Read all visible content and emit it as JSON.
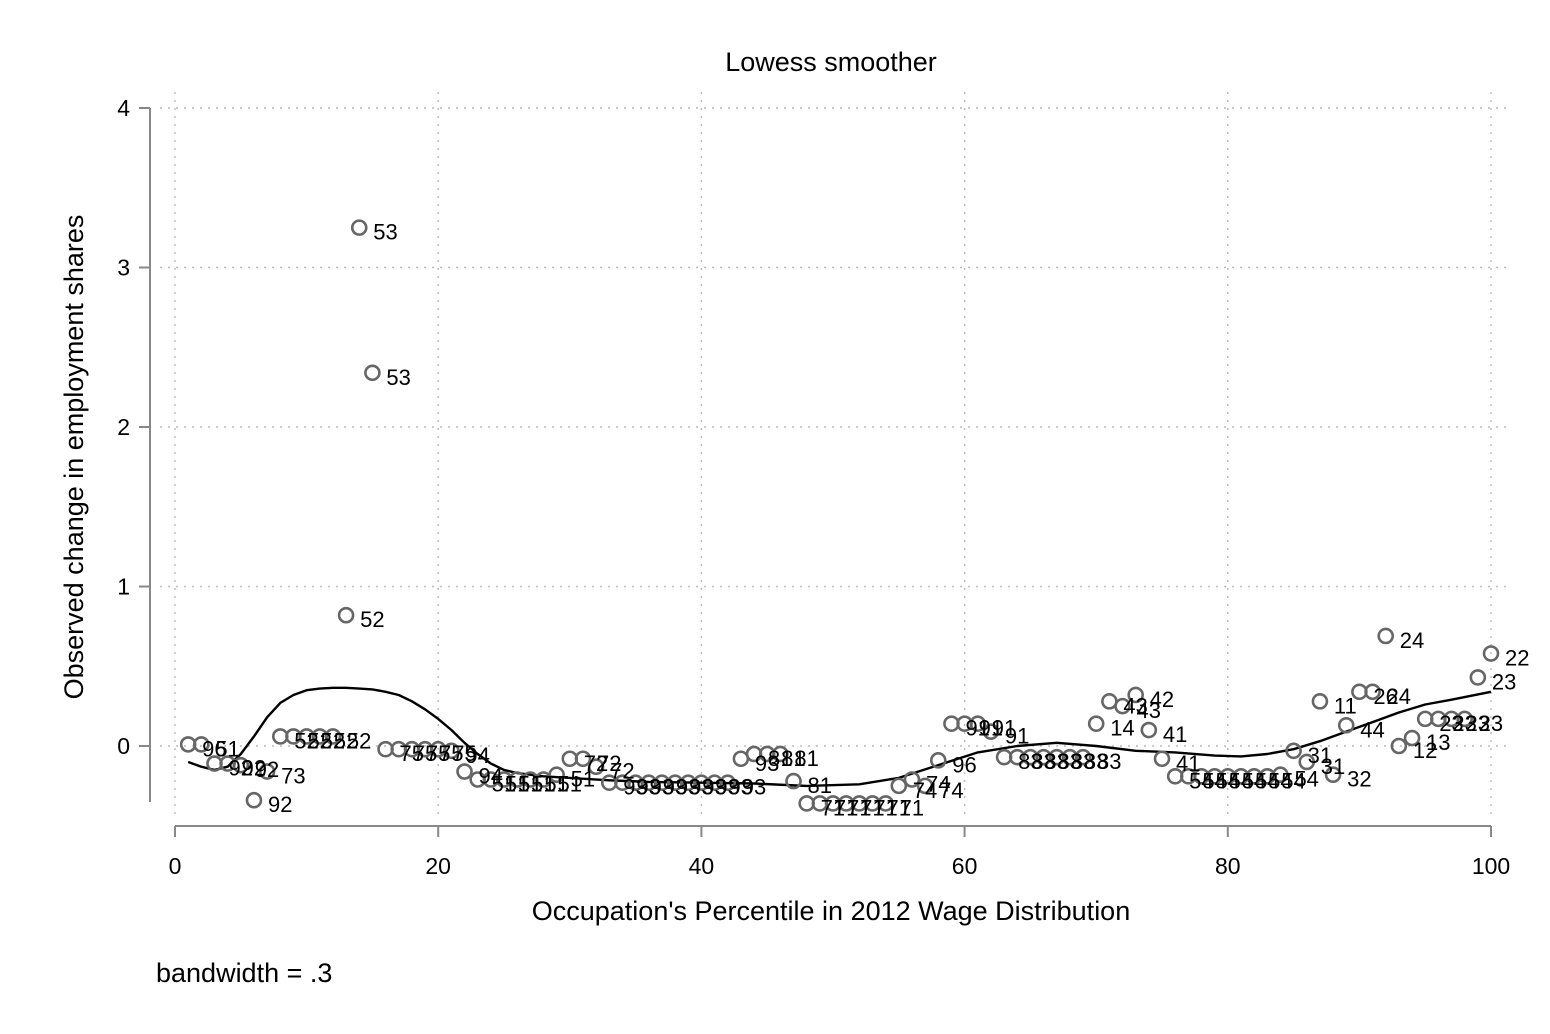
{
  "chart_data": {
    "type": "scatter",
    "title": "Lowess smoother",
    "xlabel": "Occupation's Percentile in 2012 Wage Distribution",
    "ylabel": "Observed change in employment shares",
    "note": "bandwidth = .3",
    "xlim": [
      0,
      100
    ],
    "ylim": [
      -0.5,
      4
    ],
    "xticks": [
      0,
      20,
      40,
      60,
      80,
      100
    ],
    "yticks": [
      0,
      1,
      2,
      3,
      4
    ],
    "grid": true,
    "colors": {
      "marker": "#666666",
      "line": "#000000",
      "grid": "#bbbbbb",
      "axis": "#888888"
    },
    "points": [
      {
        "x": 1,
        "y": 0.01,
        "label": "96"
      },
      {
        "x": 2,
        "y": 0.01,
        "label": "51"
      },
      {
        "x": 3,
        "y": -0.11,
        "label": "92"
      },
      {
        "x": 4,
        "y": -0.11,
        "label": "92"
      },
      {
        "x": 5,
        "y": -0.12,
        "label": "92"
      },
      {
        "x": 6,
        "y": -0.34,
        "label": "92"
      },
      {
        "x": 7,
        "y": -0.16,
        "label": "73"
      },
      {
        "x": 8,
        "y": 0.06,
        "label": "52"
      },
      {
        "x": 9,
        "y": 0.06,
        "label": "52"
      },
      {
        "x": 10,
        "y": 0.06,
        "label": "52"
      },
      {
        "x": 11,
        "y": 0.06,
        "label": "52"
      },
      {
        "x": 12,
        "y": 0.06,
        "label": "52"
      },
      {
        "x": 13,
        "y": 0.82,
        "label": "52"
      },
      {
        "x": 14,
        "y": 3.25,
        "label": "53"
      },
      {
        "x": 15,
        "y": 2.34,
        "label": "53"
      },
      {
        "x": 16,
        "y": -0.02,
        "label": "75"
      },
      {
        "x": 17,
        "y": -0.02,
        "label": "75"
      },
      {
        "x": 18,
        "y": -0.02,
        "label": "75"
      },
      {
        "x": 19,
        "y": -0.02,
        "label": "75"
      },
      {
        "x": 20,
        "y": -0.02,
        "label": "75"
      },
      {
        "x": 21,
        "y": -0.03,
        "label": "94"
      },
      {
        "x": 22,
        "y": -0.16,
        "label": "94"
      },
      {
        "x": 23,
        "y": -0.21,
        "label": "51"
      },
      {
        "x": 24,
        "y": -0.21,
        "label": "51"
      },
      {
        "x": 25,
        "y": -0.21,
        "label": "51"
      },
      {
        "x": 26,
        "y": -0.21,
        "label": "51"
      },
      {
        "x": 27,
        "y": -0.21,
        "label": "51"
      },
      {
        "x": 28,
        "y": -0.21,
        "label": "51"
      },
      {
        "x": 29,
        "y": -0.18,
        "label": "51"
      },
      {
        "x": 30,
        "y": -0.08,
        "label": "72"
      },
      {
        "x": 31,
        "y": -0.08,
        "label": "72"
      },
      {
        "x": 32,
        "y": -0.13,
        "label": "72"
      },
      {
        "x": 33,
        "y": -0.23,
        "label": "93"
      },
      {
        "x": 34,
        "y": -0.23,
        "label": "93"
      },
      {
        "x": 35,
        "y": -0.23,
        "label": "93"
      },
      {
        "x": 36,
        "y": -0.23,
        "label": "93"
      },
      {
        "x": 37,
        "y": -0.23,
        "label": "93"
      },
      {
        "x": 38,
        "y": -0.23,
        "label": "93"
      },
      {
        "x": 39,
        "y": -0.23,
        "label": "93"
      },
      {
        "x": 40,
        "y": -0.23,
        "label": "93"
      },
      {
        "x": 41,
        "y": -0.23,
        "label": "93"
      },
      {
        "x": 42,
        "y": -0.23,
        "label": "93"
      },
      {
        "x": 43,
        "y": -0.08,
        "label": "93"
      },
      {
        "x": 44,
        "y": -0.05,
        "label": "81"
      },
      {
        "x": 45,
        "y": -0.05,
        "label": "81"
      },
      {
        "x": 46,
        "y": -0.05,
        "label": "81"
      },
      {
        "x": 47,
        "y": -0.22,
        "label": "81"
      },
      {
        "x": 48,
        "y": -0.36,
        "label": "71"
      },
      {
        "x": 49,
        "y": -0.36,
        "label": "71"
      },
      {
        "x": 50,
        "y": -0.36,
        "label": "71"
      },
      {
        "x": 51,
        "y": -0.36,
        "label": "71"
      },
      {
        "x": 52,
        "y": -0.36,
        "label": "71"
      },
      {
        "x": 53,
        "y": -0.36,
        "label": "71"
      },
      {
        "x": 54,
        "y": -0.36,
        "label": "71"
      },
      {
        "x": 55,
        "y": -0.25,
        "label": "74"
      },
      {
        "x": 56,
        "y": -0.21,
        "label": "74"
      },
      {
        "x": 57,
        "y": -0.25,
        "label": "74"
      },
      {
        "x": 58,
        "y": -0.09,
        "label": "96"
      },
      {
        "x": 59,
        "y": 0.14,
        "label": "91"
      },
      {
        "x": 60,
        "y": 0.14,
        "label": "91"
      },
      {
        "x": 61,
        "y": 0.14,
        "label": "91"
      },
      {
        "x": 62,
        "y": 0.09,
        "label": "91"
      },
      {
        "x": 63,
        "y": -0.07,
        "label": "83"
      },
      {
        "x": 64,
        "y": -0.07,
        "label": "83"
      },
      {
        "x": 65,
        "y": -0.07,
        "label": "83"
      },
      {
        "x": 66,
        "y": -0.07,
        "label": "83"
      },
      {
        "x": 67,
        "y": -0.07,
        "label": "83"
      },
      {
        "x": 68,
        "y": -0.07,
        "label": "83"
      },
      {
        "x": 69,
        "y": -0.07,
        "label": "83"
      },
      {
        "x": 70,
        "y": 0.14,
        "label": "14"
      },
      {
        "x": 71,
        "y": 0.28,
        "label": "43"
      },
      {
        "x": 72,
        "y": 0.25,
        "label": "43"
      },
      {
        "x": 73,
        "y": 0.32,
        "label": "42"
      },
      {
        "x": 74,
        "y": 0.1,
        "label": "41"
      },
      {
        "x": 75,
        "y": -0.08,
        "label": "41"
      },
      {
        "x": 76,
        "y": -0.19,
        "label": "54"
      },
      {
        "x": 77,
        "y": -0.19,
        "label": "54"
      },
      {
        "x": 78,
        "y": -0.19,
        "label": "54"
      },
      {
        "x": 79,
        "y": -0.19,
        "label": "54"
      },
      {
        "x": 80,
        "y": -0.19,
        "label": "54"
      },
      {
        "x": 81,
        "y": -0.19,
        "label": "54"
      },
      {
        "x": 82,
        "y": -0.19,
        "label": "54"
      },
      {
        "x": 83,
        "y": -0.19,
        "label": "54"
      },
      {
        "x": 84,
        "y": -0.18,
        "label": "54"
      },
      {
        "x": 85,
        "y": -0.03,
        "label": "31"
      },
      {
        "x": 86,
        "y": -0.1,
        "label": "31"
      },
      {
        "x": 87,
        "y": 0.28,
        "label": "11"
      },
      {
        "x": 88,
        "y": -0.18,
        "label": "32"
      },
      {
        "x": 89,
        "y": 0.13,
        "label": "44"
      },
      {
        "x": 90,
        "y": 0.34,
        "label": "26"
      },
      {
        "x": 91,
        "y": 0.34,
        "label": "24"
      },
      {
        "x": 92,
        "y": 0.69,
        "label": "24"
      },
      {
        "x": 93,
        "y": 0.0,
        "label": "12"
      },
      {
        "x": 94,
        "y": 0.05,
        "label": "13"
      },
      {
        "x": 95,
        "y": 0.17,
        "label": "23"
      },
      {
        "x": 96,
        "y": 0.17,
        "label": "23"
      },
      {
        "x": 97,
        "y": 0.17,
        "label": "23"
      },
      {
        "x": 98,
        "y": 0.17,
        "label": "23"
      },
      {
        "x": 99,
        "y": 0.43,
        "label": "23"
      },
      {
        "x": 100,
        "y": 0.58,
        "label": "22"
      }
    ],
    "smoother": {
      "x": [
        1,
        2,
        3,
        4,
        5,
        6,
        7,
        8,
        9,
        10,
        11,
        12,
        13,
        14,
        15,
        16,
        17,
        18,
        19,
        20,
        21,
        22,
        23,
        24,
        25,
        26,
        28,
        30,
        33,
        36,
        40,
        44,
        48,
        52,
        55,
        58,
        61,
        64,
        67,
        70,
        73,
        76,
        79,
        81,
        83,
        85,
        87,
        89,
        91,
        93,
        95,
        97,
        100
      ],
      "y": [
        -0.1,
        -0.13,
        -0.15,
        -0.13,
        -0.05,
        0.06,
        0.18,
        0.27,
        0.32,
        0.35,
        0.36,
        0.365,
        0.365,
        0.36,
        0.355,
        0.34,
        0.32,
        0.28,
        0.23,
        0.17,
        0.1,
        0.02,
        -0.05,
        -0.11,
        -0.15,
        -0.17,
        -0.19,
        -0.2,
        -0.215,
        -0.225,
        -0.23,
        -0.235,
        -0.25,
        -0.24,
        -0.2,
        -0.12,
        -0.04,
        0.0,
        0.02,
        0.0,
        -0.03,
        -0.04,
        -0.06,
        -0.065,
        -0.05,
        -0.02,
        0.03,
        0.09,
        0.15,
        0.21,
        0.26,
        0.29,
        0.34
      ]
    }
  }
}
